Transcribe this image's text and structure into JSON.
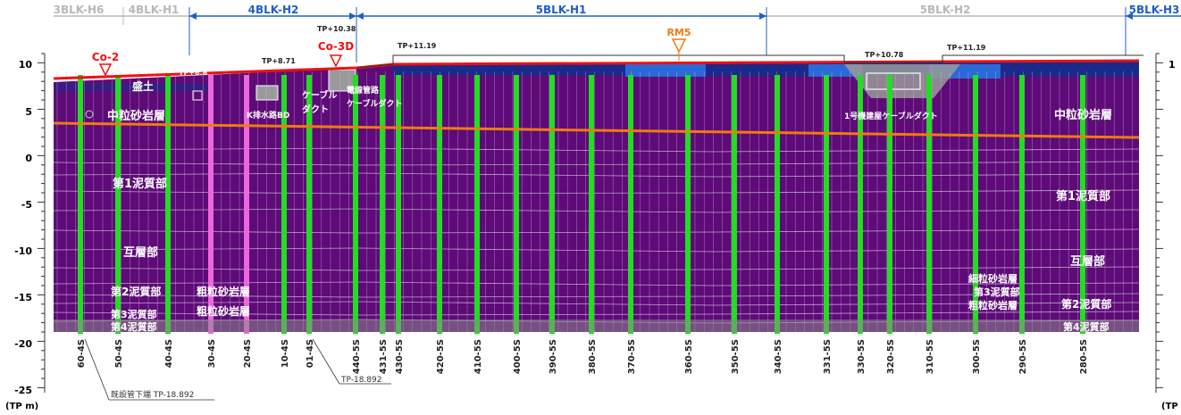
{
  "blocks": [
    {
      "label": "3BLK-H6",
      "color": "#b8b8b8"
    },
    {
      "label": "4BLK-H1",
      "color": "#b8b8b8"
    },
    {
      "label": "4BLK-H2",
      "color": "#1f5fc8"
    },
    {
      "label": "5BLK-H1",
      "color": "#1f5fc8"
    },
    {
      "label": "5BLK-H2",
      "color": "#b8b8b8"
    },
    {
      "label": "5BLK-H3",
      "color": "#1f5fc8"
    }
  ],
  "axis_ticks": [
    "10",
    "5",
    "0",
    "-5",
    "-10",
    "-15",
    "-20",
    "-25"
  ],
  "axis_unit": "(TP m)",
  "axis_unit_right": "(TP",
  "markers": {
    "co2": "Co-2",
    "co3d": "Co-3D",
    "rm5": "RM5"
  },
  "tp_labels": {
    "tp1": "TP+8.71",
    "tp2": "TP+10.38",
    "tp3": "TP+11.19",
    "tp4": "TP+10.78",
    "tp5": "TP+11.19",
    "tp6": "TP+8.8",
    "bottom1": "既設管下端 TP-18.892",
    "bottom2": "TP-18.892"
  },
  "layers": {
    "fill": "盛土",
    "sand_left": "中粒砂岩層",
    "sand_right": "中粒砂岩層",
    "mud1_left": "第1泥質部",
    "mud1_right": "第1泥質部",
    "alt_left": "互層部",
    "alt_right": "互層部",
    "mud2_left": "第2泥質部",
    "coarse1_left": "粗粒砂岩層",
    "coarse2_left": "粗粒砂岩層",
    "mud3_left": "第3泥質部",
    "mud4_left": "第4泥質部",
    "coarse1_right": "細粒砂岩層",
    "mud3_right": "第3泥質部",
    "coarse2_right": "粗粒砂岩層",
    "mud2_right": "第2泥質部",
    "mud4_right": "第4泥質部"
  },
  "structures": {
    "s1": "K排水路BD",
    "s2": "ケーブル",
    "s3": "ダクト",
    "s4": "電線管路",
    "s5": "ケーブルダクト",
    "s6": "1号機建屋ケーブルダクト"
  },
  "piles": [
    "60-4S",
    "50-4S",
    "40-4S",
    "30-4S",
    "20-4S",
    "10-4S",
    "01-4S",
    "440-5S",
    "431-5S",
    "430-5S",
    "420-5S",
    "410-5S",
    "400-5S",
    "390-5S",
    "380-5S",
    "370-5S",
    "360-5S",
    "350-5S",
    "340-5S",
    "331-5S",
    "330-5S",
    "320-5S",
    "310-5S",
    "300-5S",
    "290-5S",
    "280-5S"
  ],
  "colors": {
    "body": "#5e0a78",
    "green": "#22dd22",
    "pink": "#ee66dd",
    "red": "#ee1111",
    "orange": "#f07a10",
    "marker_red": "#ee1111",
    "marker_orange": "#f07a10"
  }
}
